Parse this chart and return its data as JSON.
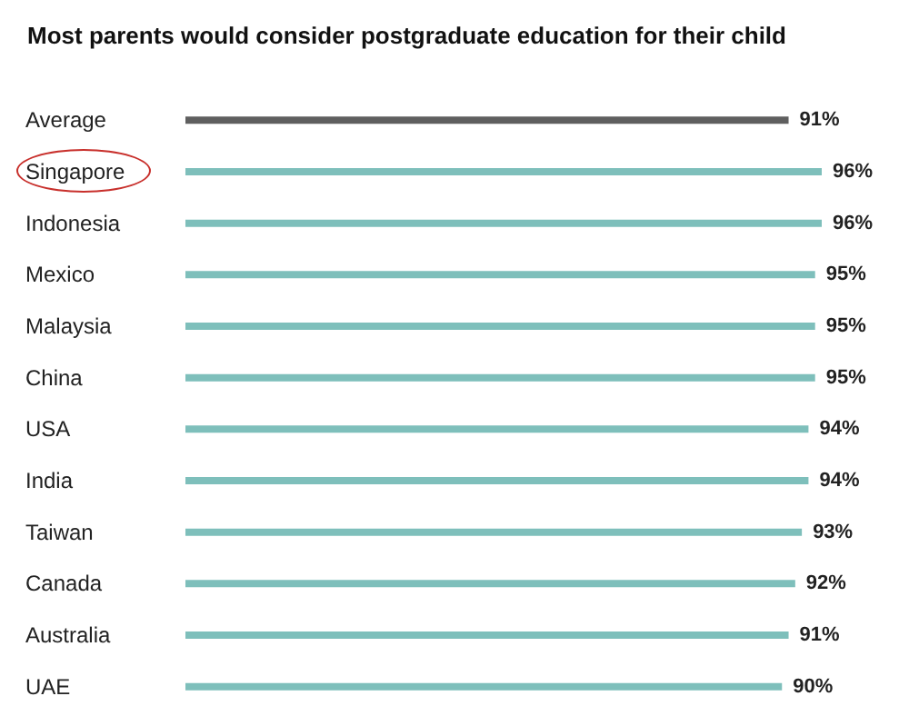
{
  "chart_data": {
    "type": "bar",
    "orientation": "horizontal",
    "title": "Most parents would consider postgraduate education for their child",
    "categories": [
      "Average",
      "Singapore",
      "Indonesia",
      "Mexico",
      "Malaysia",
      "China",
      "USA",
      "India",
      "Taiwan",
      "Canada",
      "Australia",
      "UAE"
    ],
    "values": [
      91,
      96,
      96,
      95,
      95,
      95,
      94,
      94,
      93,
      92,
      91,
      90
    ],
    "colors": [
      "#5f5f5f",
      "#7ebfbb",
      "#7ebfbb",
      "#7ebfbb",
      "#7ebfbb",
      "#7ebfbb",
      "#7ebfbb",
      "#7ebfbb",
      "#7ebfbb",
      "#7ebfbb",
      "#7ebfbb",
      "#7ebfbb"
    ],
    "value_labels": [
      "91%",
      "96%",
      "96%",
      "95%",
      "95%",
      "95%",
      "94%",
      "94%",
      "93%",
      "92%",
      "91%",
      "90%"
    ],
    "grid": false
  }
}
